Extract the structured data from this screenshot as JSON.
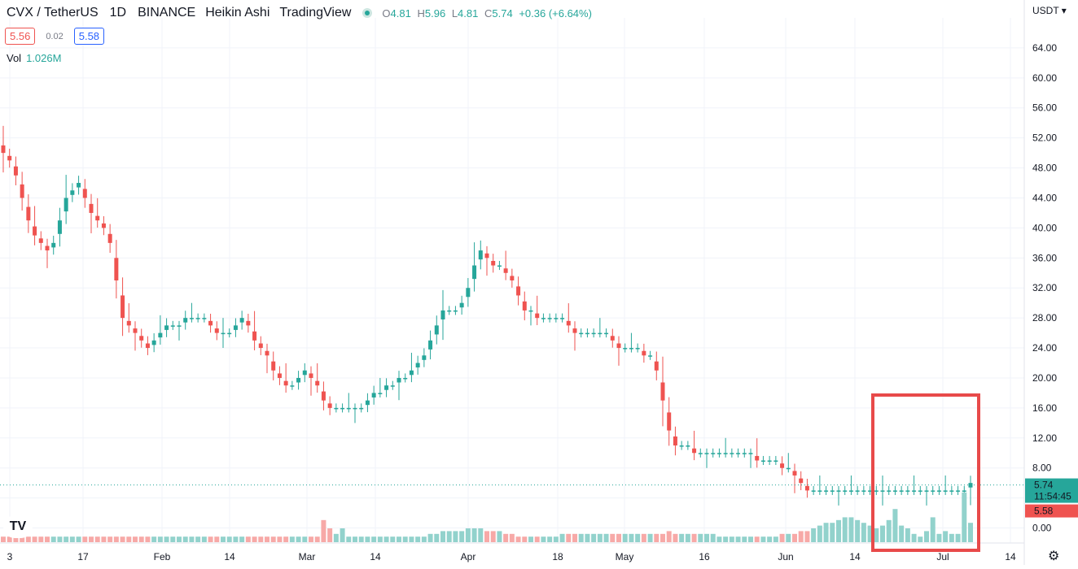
{
  "header": {
    "symbol": "CVX / TetherUS",
    "interval": "1D",
    "exchange": "BINANCE",
    "chart_style": "Heikin Ashi",
    "source": "TradingView",
    "ohlc": {
      "o_label": "O",
      "o": "4.81",
      "h_label": "H",
      "h": "5.96",
      "l_label": "L",
      "l": "4.81",
      "c_label": "C",
      "c": "5.74",
      "change": "+0.36 (+6.64%)"
    }
  },
  "price_boxes": {
    "sell": "5.56",
    "spread": "0.02",
    "buy": "5.58"
  },
  "volume": {
    "label": "Vol",
    "value": "1.026M"
  },
  "currency_label": "USDT",
  "last_price": {
    "value": "5.74",
    "countdown": "11:54:45",
    "secondary": "5.58"
  },
  "logo_text": "TV",
  "colors": {
    "up": "#26a69a",
    "down": "#ef5350",
    "up_vol": "#92d2cc",
    "down_vol": "#f7a9a7",
    "highlight": "#e84a4a",
    "grid": "#f0f3fa"
  },
  "icons": {
    "settings": "gear-icon",
    "logo": "tradingview-logo-icon"
  },
  "chart_data": {
    "type": "candlestick",
    "ylim": [
      -2,
      68
    ],
    "y_ticks": [
      "0.00",
      "4.00",
      "8.00",
      "12.00",
      "16.00",
      "20.00",
      "24.00",
      "28.00",
      "32.00",
      "36.00",
      "40.00",
      "44.00",
      "48.00",
      "52.00",
      "56.00",
      "60.00",
      "64.00"
    ],
    "x_ticks": [
      "3",
      "17",
      "Feb",
      "14",
      "Mar",
      "14",
      "Apr",
      "18",
      "May",
      "16",
      "Jun",
      "14",
      "Jul",
      "14"
    ],
    "annotation": "red rectangle around recent volume spikes",
    "candles_close_series": [
      50,
      49,
      47,
      44,
      41,
      39,
      38,
      37,
      38,
      41,
      44,
      45,
      46,
      44,
      42,
      41,
      40,
      38,
      33,
      28,
      27,
      26,
      25,
      24,
      25,
      26,
      27,
      27,
      27,
      28,
      28,
      28,
      28,
      27,
      26,
      26,
      26,
      27,
      28,
      27,
      25,
      24,
      23,
      21,
      20,
      19,
      19,
      20,
      21,
      20,
      19,
      17,
      16,
      16,
      16,
      16,
      16,
      16,
      17,
      18,
      18,
      19,
      19,
      20,
      20,
      21,
      22,
      23,
      25,
      27,
      29,
      29,
      29,
      30,
      32,
      35,
      37,
      36,
      35,
      35,
      34,
      33,
      31,
      29,
      29,
      28,
      28,
      28,
      28,
      28,
      27,
      26,
      26,
      26,
      26,
      26,
      26,
      25,
      24,
      24,
      24,
      24,
      23,
      23,
      21,
      17,
      13,
      11,
      11,
      11,
      10,
      10,
      10,
      10,
      10,
      10,
      10,
      10,
      10,
      10,
      9,
      9,
      9,
      9,
      8,
      8,
      7,
      6,
      5,
      5,
      5,
      5,
      5,
      5,
      5,
      5,
      5,
      5,
      5,
      5,
      5,
      5,
      5,
      5,
      5,
      5,
      5,
      5,
      5,
      5,
      5,
      5,
      5,
      5,
      6
    ],
    "volume_relative_series": [
      2,
      2,
      2,
      2,
      2,
      2,
      2,
      2,
      2,
      2,
      2,
      2,
      2,
      2,
      2,
      2,
      2,
      2,
      2,
      2,
      2,
      2,
      2,
      2,
      2,
      2,
      2,
      2,
      2,
      2,
      2,
      2,
      2,
      2,
      2,
      2,
      2,
      2,
      2,
      2,
      2,
      2,
      2,
      2,
      2,
      2,
      2,
      2,
      2,
      2,
      2,
      8,
      5,
      3,
      5,
      2,
      2,
      2,
      2,
      2,
      2,
      2,
      2,
      2,
      2,
      2,
      2,
      2,
      3,
      3,
      4,
      4,
      4,
      4,
      5,
      5,
      5,
      4,
      4,
      4,
      3,
      3,
      2,
      2,
      2,
      2,
      2,
      2,
      2,
      3,
      3,
      3,
      3,
      3,
      3,
      3,
      3,
      3,
      3,
      3,
      3,
      3,
      3,
      3,
      3,
      3,
      4,
      3,
      3,
      3,
      3,
      3,
      3,
      3,
      2,
      2,
      2,
      2,
      2,
      2,
      2,
      2,
      2,
      2,
      3,
      3,
      3,
      4,
      4,
      5,
      6,
      7,
      7,
      8,
      9,
      9,
      8,
      7,
      6,
      5,
      6,
      8,
      12,
      6,
      5,
      3,
      2,
      4,
      9,
      3,
      4,
      3,
      3,
      18,
      7,
      3,
      22
    ]
  }
}
